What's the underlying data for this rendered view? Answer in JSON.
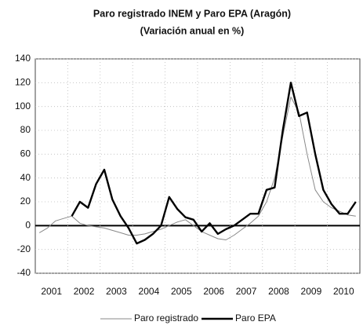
{
  "chart_data": {
    "type": "line",
    "title": "Paro registrado INEM y Paro EPA (Aragón)",
    "subtitle": "(Variación anual en %)",
    "categories": [
      null,
      "2001",
      null,
      null,
      null,
      "2002",
      null,
      null,
      null,
      "2003",
      null,
      null,
      null,
      "2004",
      null,
      null,
      null,
      "2005",
      null,
      null,
      null,
      "2006",
      null,
      null,
      null,
      "2007",
      null,
      null,
      null,
      "2008",
      null,
      null,
      null,
      "2009",
      null,
      null,
      null,
      "2010",
      null,
      null
    ],
    "series": [
      {
        "name": "Paro registrado",
        "color": "#888888",
        "values": [
          -6,
          -2,
          4,
          6,
          8,
          2,
          0,
          -1,
          -2,
          -4,
          -6,
          -8,
          -8,
          -7,
          -5,
          -3,
          0,
          3,
          5,
          0,
          -5,
          -8,
          -11,
          -12,
          -8,
          -3,
          2,
          8,
          20,
          40,
          75,
          108,
          95,
          60,
          30,
          20,
          15,
          12,
          9,
          8
        ]
      },
      {
        "name": "Paro EPA",
        "color": "#000000",
        "values": [
          null,
          null,
          null,
          null,
          8,
          20,
          15,
          35,
          47,
          22,
          8,
          -2,
          -15,
          -12,
          -7,
          0,
          24,
          14,
          7,
          5,
          -5,
          2,
          -7,
          -3,
          0,
          5,
          10,
          10,
          30,
          32,
          80,
          120,
          92,
          95,
          60,
          30,
          18,
          10,
          10,
          20
        ]
      }
    ],
    "ylim": [
      -40,
      140
    ],
    "yticks": [
      -40,
      -20,
      0,
      20,
      40,
      60,
      80,
      100,
      120,
      140
    ],
    "grid": true
  }
}
